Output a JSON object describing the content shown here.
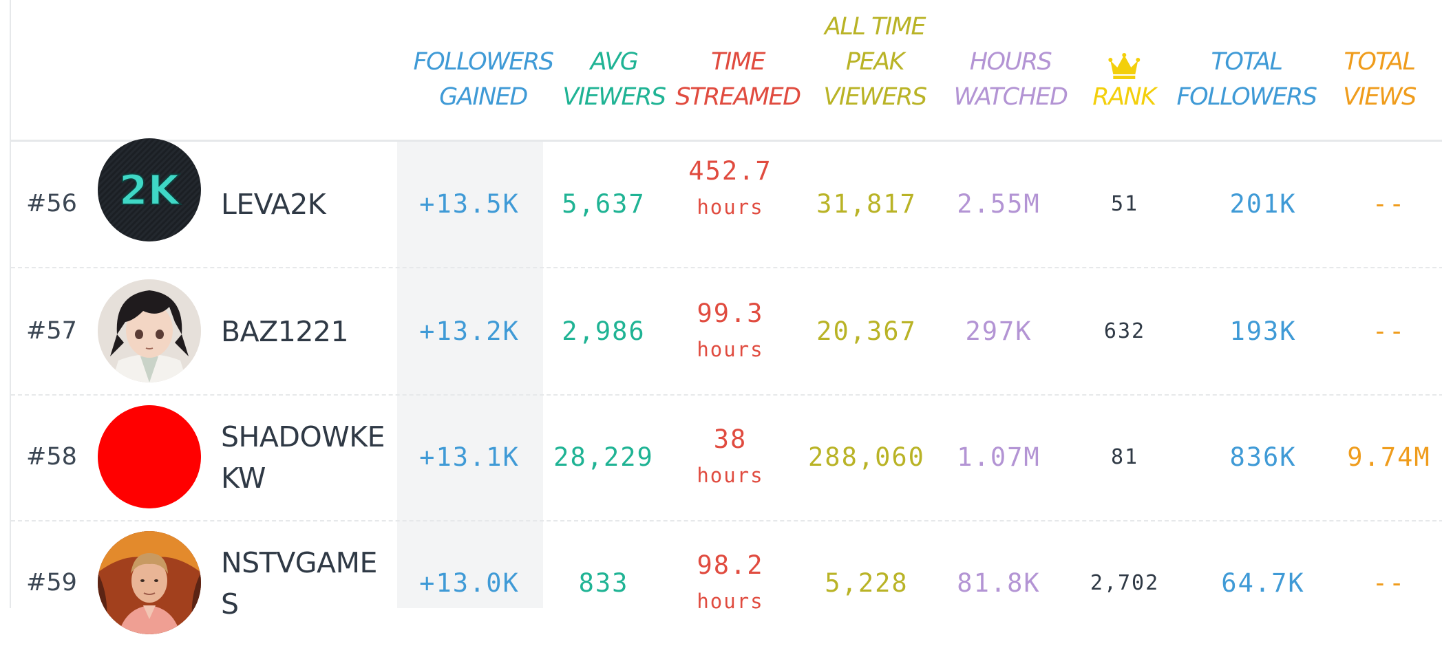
{
  "headers": {
    "followers_gained": [
      "FOLLOWERS",
      "GAINED"
    ],
    "avg_viewers": [
      "AVG",
      "VIEWERS"
    ],
    "time_streamed": [
      "TIME",
      "STREAMED"
    ],
    "peak_viewers": [
      "ALL TIME",
      "PEAK",
      "VIEWERS"
    ],
    "hours_watched": [
      "HOURS",
      "WATCHED"
    ],
    "rank": "RANK",
    "total_followers": [
      "TOTAL",
      "FOLLOWERS"
    ],
    "total_views": [
      "TOTAL",
      "VIEWS"
    ]
  },
  "colors": {
    "followers_gained": "#3f9ad6",
    "avg_viewers": "#1fb394",
    "time_streamed": "#e04b3f",
    "peak_viewers": "#b9b326",
    "hours_watched": "#b394d4",
    "rank": "#f3cf0b",
    "total_followers": "#3f9ad6",
    "total_views": "#ef9c1c"
  },
  "rows": [
    {
      "rank": "#56",
      "name": "LEVA2K",
      "avatar": "2k-logo-icon",
      "followers_gained": "+13.5K",
      "avg_viewers": "5,637",
      "time_value": "452.7",
      "time_unit": "hours",
      "peak_viewers": "31,817",
      "hours_watched": "2.55M",
      "rank_value": "51",
      "total_followers": "201K",
      "total_views": "--"
    },
    {
      "rank": "#57",
      "name": "BAZ1221",
      "avatar": "anime-character-avatar",
      "followers_gained": "+13.2K",
      "avg_viewers": "2,986",
      "time_value": "99.3",
      "time_unit": "hours",
      "peak_viewers": "20,367",
      "hours_watched": "297K",
      "rank_value": "632",
      "total_followers": "193K",
      "total_views": "--"
    },
    {
      "rank": "#58",
      "name": "SHADOWKEKW",
      "avatar": "red-circle-avatar",
      "followers_gained": "+13.1K",
      "avg_viewers": "28,229",
      "time_value": "38",
      "time_unit": "hours",
      "peak_viewers": "288,060",
      "hours_watched": "1.07M",
      "rank_value": "81",
      "total_followers": "836K",
      "total_views": "9.74M"
    },
    {
      "rank": "#59",
      "name": "NSTVGAMES",
      "avatar": "person-photo-avatar",
      "followers_gained": "+13.0K",
      "avg_viewers": "833",
      "time_value": "98.2",
      "time_unit": "hours",
      "peak_viewers": "5,228",
      "hours_watched": "81.8K",
      "rank_value": "2,702",
      "total_followers": "64.7K",
      "total_views": "--"
    }
  ]
}
